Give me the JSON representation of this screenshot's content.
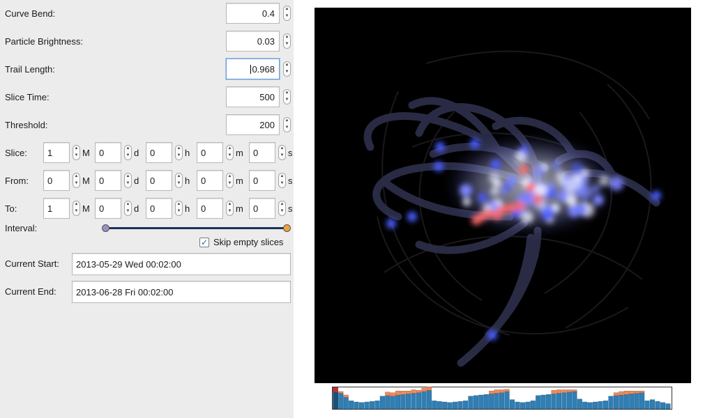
{
  "settings": [
    {
      "label": "Curve Bend:",
      "value": "0.4"
    },
    {
      "label": "Particle Brightness:",
      "value": "0.03"
    },
    {
      "label": "Trail Length:",
      "value": "0.968"
    },
    {
      "label": "Slice Time:",
      "value": "500"
    },
    {
      "label": "Threshold:",
      "value": "200"
    }
  ],
  "time_rows": [
    {
      "label": "Slice:",
      "values": [
        "1",
        "0",
        "0",
        "0",
        "0"
      ]
    },
    {
      "label": "From:",
      "values": [
        "0",
        "0",
        "0",
        "0",
        "0"
      ]
    },
    {
      "label": "To:",
      "values": [
        "1",
        "0",
        "0",
        "0",
        "0"
      ]
    }
  ],
  "units": [
    "M",
    "d",
    "h",
    "m",
    "s"
  ],
  "interval": {
    "label": "Interval:",
    "start_fraction": 0.0,
    "end_fraction": 1.0,
    "start_color": "#9a8fc4",
    "end_color": "#f0a23c"
  },
  "skip_empty": {
    "label": "Skip empty slices",
    "checked": true
  },
  "current_start": {
    "label": "Current Start:",
    "value": "2013-05-29 Wed 00:02:00"
  },
  "current_end": {
    "label": "Current End:",
    "value": "2013-06-28 Fri 00:02:00"
  },
  "colors": {
    "accent": "#2e7fb6",
    "highlight": "#f08a5a",
    "particle_blue": "#4a5cff",
    "particle_red": "#ff6b6b"
  },
  "chart_data": {
    "type": "bar",
    "series": [
      {
        "values": [
          30,
          27,
          20,
          14,
          12,
          11,
          12,
          13,
          14,
          22,
          23,
          22,
          24,
          25,
          26,
          27,
          28,
          30,
          32,
          14,
          13,
          12,
          11,
          12,
          13,
          14,
          22,
          23,
          24,
          25,
          26,
          27,
          28,
          30,
          16,
          12,
          11,
          12,
          14,
          23,
          24,
          25,
          26,
          27,
          28,
          29,
          30,
          17,
          12,
          11,
          12,
          13,
          14,
          22,
          23,
          24,
          25,
          26,
          27,
          28,
          14,
          16,
          13,
          11,
          9
        ]
      },
      {
        "values": [
          4,
          3,
          4,
          0,
          0,
          0,
          0,
          0,
          0,
          0,
          6,
          6,
          7,
          6,
          5,
          6,
          4,
          6,
          6,
          0,
          0,
          0,
          0,
          0,
          0,
          0,
          0,
          0,
          0,
          0,
          5,
          6,
          5,
          4,
          0,
          0,
          0,
          0,
          0,
          0,
          0,
          0,
          6,
          6,
          5,
          4,
          3,
          0,
          0,
          0,
          0,
          0,
          0,
          0,
          5,
          6,
          6,
          5,
          4,
          3,
          0,
          0,
          0,
          0,
          0
        ]
      }
    ]
  }
}
